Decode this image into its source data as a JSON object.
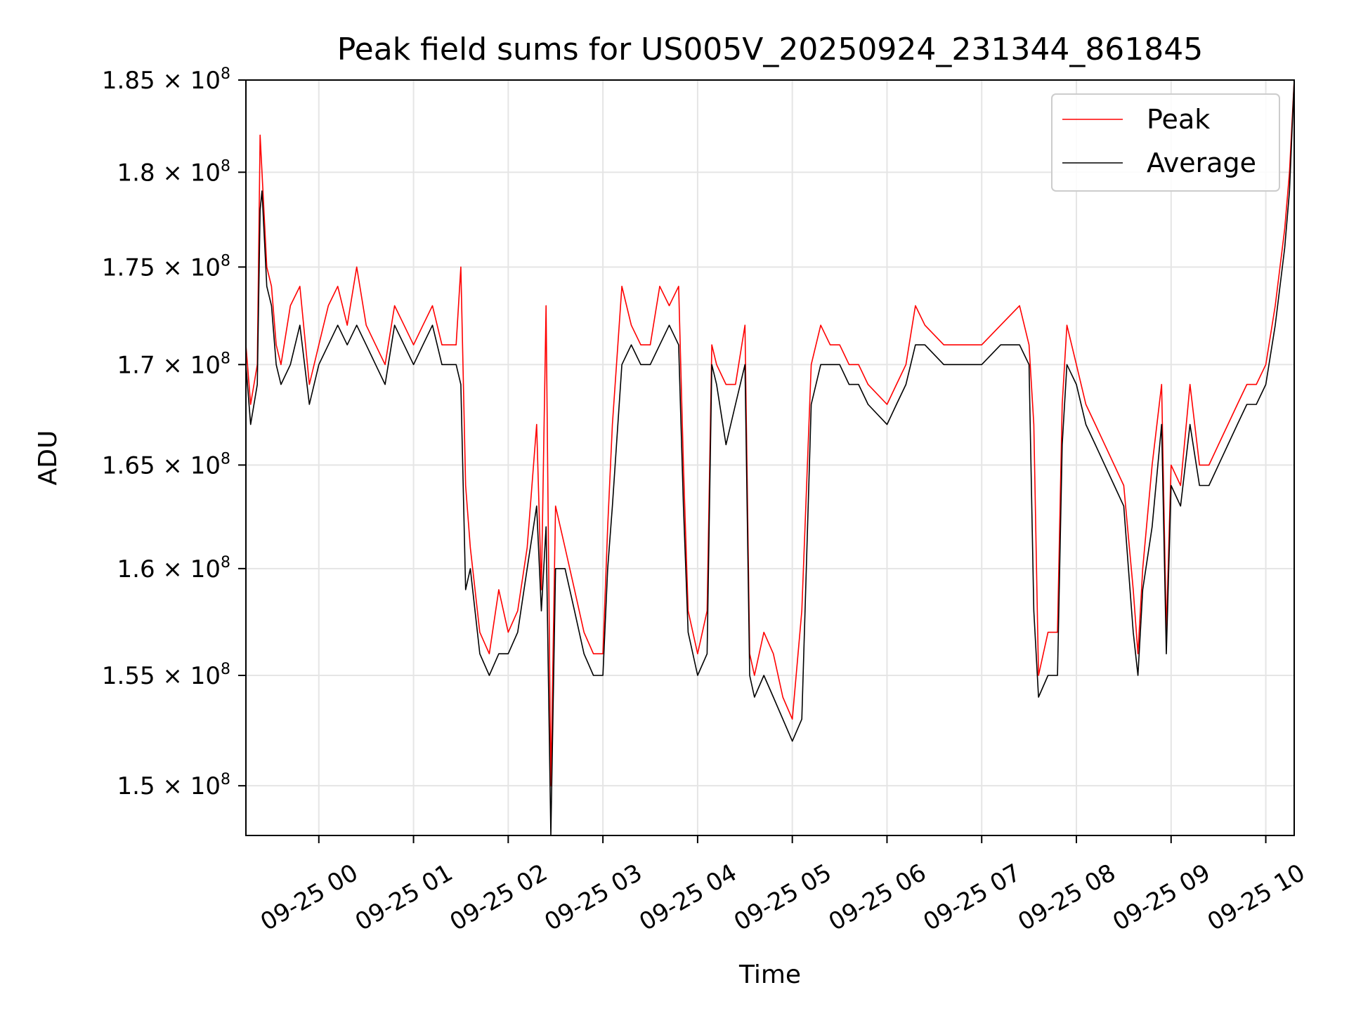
{
  "chart_data": {
    "type": "line",
    "title": "Peak field sums for US005V_20250924_231344_861845",
    "xlabel": "Time",
    "ylabel": "ADU",
    "y_scale": "log",
    "ylim": [
      147800000.0,
      185000000.0
    ],
    "xlim_hours": [
      -0.77,
      10.3
    ],
    "grid": true,
    "legend_position": "top-right",
    "x_unit": "hours since 09-25 00:00",
    "x_ticks": [
      0,
      1,
      2,
      3,
      4,
      5,
      6,
      7,
      8,
      9,
      10
    ],
    "x_tick_labels": [
      "09-25 00",
      "09-25 01",
      "09-25 02",
      "09-25 03",
      "09-25 04",
      "09-25 05",
      "09-25 06",
      "09-25 07",
      "09-25 08",
      "09-25 09",
      "09-25 10"
    ],
    "y_ticks": [
      150000000.0,
      155000000.0,
      160000000.0,
      165000000.0,
      170000000.0,
      175000000.0,
      180000000.0,
      185000000.0
    ],
    "y_tick_mantissas": [
      "1.5",
      "1.55",
      "1.6",
      "1.65",
      "1.7",
      "1.75",
      "1.8",
      "1.85"
    ],
    "y_tick_times": "× 10",
    "y_tick_exponent": "8",
    "x": [
      -0.77,
      -0.72,
      -0.65,
      -0.62,
      -0.6,
      -0.55,
      -0.5,
      -0.45,
      -0.4,
      -0.3,
      -0.2,
      -0.1,
      0.0,
      0.1,
      0.2,
      0.3,
      0.4,
      0.5,
      0.6,
      0.7,
      0.8,
      0.9,
      1.0,
      1.1,
      1.2,
      1.3,
      1.45,
      1.5,
      1.55,
      1.6,
      1.7,
      1.8,
      1.9,
      2.0,
      2.1,
      2.2,
      2.3,
      2.35,
      2.4,
      2.45,
      2.5,
      2.6,
      2.7,
      2.8,
      2.9,
      3.0,
      3.05,
      3.1,
      3.2,
      3.3,
      3.4,
      3.5,
      3.6,
      3.7,
      3.8,
      3.85,
      3.9,
      4.0,
      4.1,
      4.15,
      4.2,
      4.3,
      4.4,
      4.5,
      4.55,
      4.6,
      4.7,
      4.8,
      4.9,
      5.0,
      5.1,
      5.2,
      5.3,
      5.4,
      5.5,
      5.6,
      5.7,
      5.8,
      6.0,
      6.1,
      6.2,
      6.3,
      6.4,
      6.6,
      6.8,
      7.0,
      7.2,
      7.4,
      7.5,
      7.55,
      7.6,
      7.7,
      7.8,
      7.85,
      7.9,
      8.0,
      8.1,
      8.2,
      8.3,
      8.4,
      8.5,
      8.6,
      8.65,
      8.7,
      8.8,
      8.9,
      8.95,
      9.0,
      9.1,
      9.2,
      9.3,
      9.4,
      9.5,
      9.6,
      9.7,
      9.8,
      9.9,
      10.0,
      10.1,
      10.2,
      10.25,
      10.3
    ],
    "series": [
      {
        "name": "Peak",
        "color": "#ff0000",
        "values": [
          171000000.0,
          168000000.0,
          170000000.0,
          182000000.0,
          180000000.0,
          175000000.0,
          174000000.0,
          171000000.0,
          170000000.0,
          173000000.0,
          174000000.0,
          169000000.0,
          171000000.0,
          173000000.0,
          174000000.0,
          172000000.0,
          175000000.0,
          172000000.0,
          171000000.0,
          170000000.0,
          173000000.0,
          172000000.0,
          171000000.0,
          172000000.0,
          173000000.0,
          171000000.0,
          171000000.0,
          175000000.0,
          164000000.0,
          161000000.0,
          157000000.0,
          156000000.0,
          159000000.0,
          157000000.0,
          158000000.0,
          161000000.0,
          167000000.0,
          159000000.0,
          173000000.0,
          150000000.0,
          163000000.0,
          161000000.0,
          159000000.0,
          157000000.0,
          156000000.0,
          156000000.0,
          162000000.0,
          167000000.0,
          174000000.0,
          172000000.0,
          171000000.0,
          171000000.0,
          174000000.0,
          173000000.0,
          174000000.0,
          165000000.0,
          158000000.0,
          156000000.0,
          158000000.0,
          171000000.0,
          170000000.0,
          169000000.0,
          169000000.0,
          172000000.0,
          156000000.0,
          155000000.0,
          157000000.0,
          156000000.0,
          154000000.0,
          153000000.0,
          158000000.0,
          170000000.0,
          172000000.0,
          171000000.0,
          171000000.0,
          170000000.0,
          170000000.0,
          169000000.0,
          168000000.0,
          169000000.0,
          170000000.0,
          173000000.0,
          172000000.0,
          171000000.0,
          171000000.0,
          171000000.0,
          172000000.0,
          173000000.0,
          171000000.0,
          167000000.0,
          155000000.0,
          157000000.0,
          157000000.0,
          168000000.0,
          172000000.0,
          170000000.0,
          168000000.0,
          167000000.0,
          166000000.0,
          165000000.0,
          164000000.0,
          159000000.0,
          156000000.0,
          160000000.0,
          165000000.0,
          169000000.0,
          157000000.0,
          165000000.0,
          164000000.0,
          169000000.0,
          165000000.0,
          165000000.0,
          166000000.0,
          167000000.0,
          168000000.0,
          169000000.0,
          169000000.0,
          170000000.0,
          173000000.0,
          177000000.0,
          180000000.0,
          185000000.0
        ]
      },
      {
        "name": "Average",
        "color": "#000000",
        "values": [
          170000000.0,
          167000000.0,
          169000000.0,
          178000000.0,
          179000000.0,
          174000000.0,
          173000000.0,
          170000000.0,
          169000000.0,
          170000000.0,
          172000000.0,
          168000000.0,
          170000000.0,
          171000000.0,
          172000000.0,
          171000000.0,
          172000000.0,
          171000000.0,
          170000000.0,
          169000000.0,
          172000000.0,
          171000000.0,
          170000000.0,
          171000000.0,
          172000000.0,
          170000000.0,
          170000000.0,
          169000000.0,
          159000000.0,
          160000000.0,
          156000000.0,
          155000000.0,
          156000000.0,
          156000000.0,
          157000000.0,
          160000000.0,
          163000000.0,
          158000000.0,
          162000000.0,
          147800000.0,
          160000000.0,
          160000000.0,
          158000000.0,
          156000000.0,
          155000000.0,
          155000000.0,
          160000000.0,
          163000000.0,
          170000000.0,
          171000000.0,
          170000000.0,
          170000000.0,
          171000000.0,
          172000000.0,
          171000000.0,
          163000000.0,
          157000000.0,
          155000000.0,
          156000000.0,
          170000000.0,
          169000000.0,
          166000000.0,
          168000000.0,
          170000000.0,
          155000000.0,
          154000000.0,
          155000000.0,
          154000000.0,
          153000000.0,
          152000000.0,
          153000000.0,
          168000000.0,
          170000000.0,
          170000000.0,
          170000000.0,
          169000000.0,
          169000000.0,
          168000000.0,
          167000000.0,
          168000000.0,
          169000000.0,
          171000000.0,
          171000000.0,
          170000000.0,
          170000000.0,
          170000000.0,
          171000000.0,
          171000000.0,
          170000000.0,
          158000000.0,
          154000000.0,
          155000000.0,
          155000000.0,
          166000000.0,
          170000000.0,
          169000000.0,
          167000000.0,
          166000000.0,
          165000000.0,
          164000000.0,
          163000000.0,
          157000000.0,
          155000000.0,
          159000000.0,
          162000000.0,
          167000000.0,
          156000000.0,
          164000000.0,
          163000000.0,
          167000000.0,
          164000000.0,
          164000000.0,
          165000000.0,
          166000000.0,
          167000000.0,
          168000000.0,
          168000000.0,
          169000000.0,
          172000000.0,
          176000000.0,
          179000000.0,
          185000000.0
        ]
      }
    ]
  }
}
